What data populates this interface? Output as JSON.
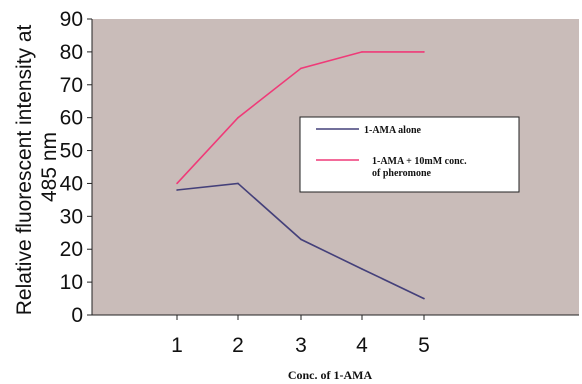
{
  "chart_data": {
    "type": "line",
    "title": "",
    "xlabel": "Conc. of 1-AMA",
    "ylabel_lines": [
      "Relative fluorescent intensity at",
      "485 nm"
    ],
    "x": [
      1,
      2,
      3,
      4,
      5
    ],
    "x_tick_labels": [
      "1",
      "2",
      "3",
      "4",
      "5"
    ],
    "ylim": [
      0,
      90
    ],
    "y_ticks": [
      0,
      10,
      20,
      30,
      40,
      50,
      60,
      70,
      80,
      90
    ],
    "grid": false,
    "legend_position": "right",
    "plot_background": "#c9bcb9",
    "series": [
      {
        "name": "1-AMA alone",
        "color": "#44407a",
        "values": [
          38,
          40,
          23,
          14,
          5
        ]
      },
      {
        "name_lines": [
          "1-AMA + 10mM conc.",
          "of pheromone"
        ],
        "color": "#ef3a78",
        "values": [
          40,
          60,
          75,
          80,
          80
        ]
      }
    ]
  }
}
